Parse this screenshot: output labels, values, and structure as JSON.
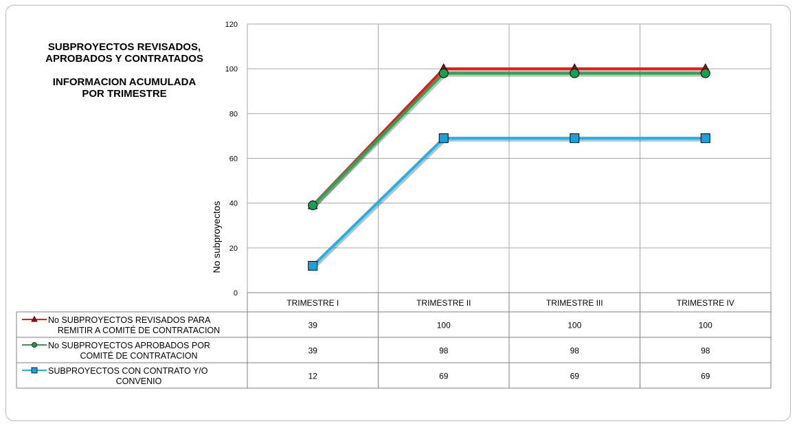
{
  "chart_data": {
    "type": "line",
    "title_lines": [
      "SUBPROYECTOS  REVISADOS,",
      "APROBADOS  Y CONTRATADOS",
      "",
      "INFORMACION ACUMULADA",
      "POR TRIMESTRE"
    ],
    "ylabel": "No subproyectos",
    "xlabel": "",
    "ylim": [
      0,
      120
    ],
    "yticks": [
      0,
      20,
      40,
      60,
      80,
      100,
      120
    ],
    "categories": [
      "TRIMESTRE I",
      "TRIMESTRE II",
      "TRIMESTRE III",
      "TRIMESTRE IV"
    ],
    "grid": true,
    "legend_placement": "data-table",
    "series": [
      {
        "name_lines": [
          "No SUBPROYECTOS REVISADOS PARA",
          "REMITIR A COMITÉ DE CONTRATACION"
        ],
        "values": [
          39,
          100,
          100,
          100
        ],
        "color": "#e31d1d",
        "marker": "triangle",
        "marker_color": "#c00000"
      },
      {
        "name_lines": [
          "No SUBPROYECTOS APROBADOS POR",
          "COMITÉ DE CONTRATACION"
        ],
        "values": [
          39,
          98,
          98,
          98
        ],
        "color": "#22a84a",
        "marker": "circle",
        "marker_color": "#18a050"
      },
      {
        "name_lines": [
          "SUBPROYECTOS CON CONTRATO Y/O",
          "CONVENIO"
        ],
        "values": [
          12,
          69,
          69,
          69
        ],
        "color": "#1fb2e6",
        "marker": "square",
        "marker_color": "#1aa0dd"
      }
    ]
  }
}
